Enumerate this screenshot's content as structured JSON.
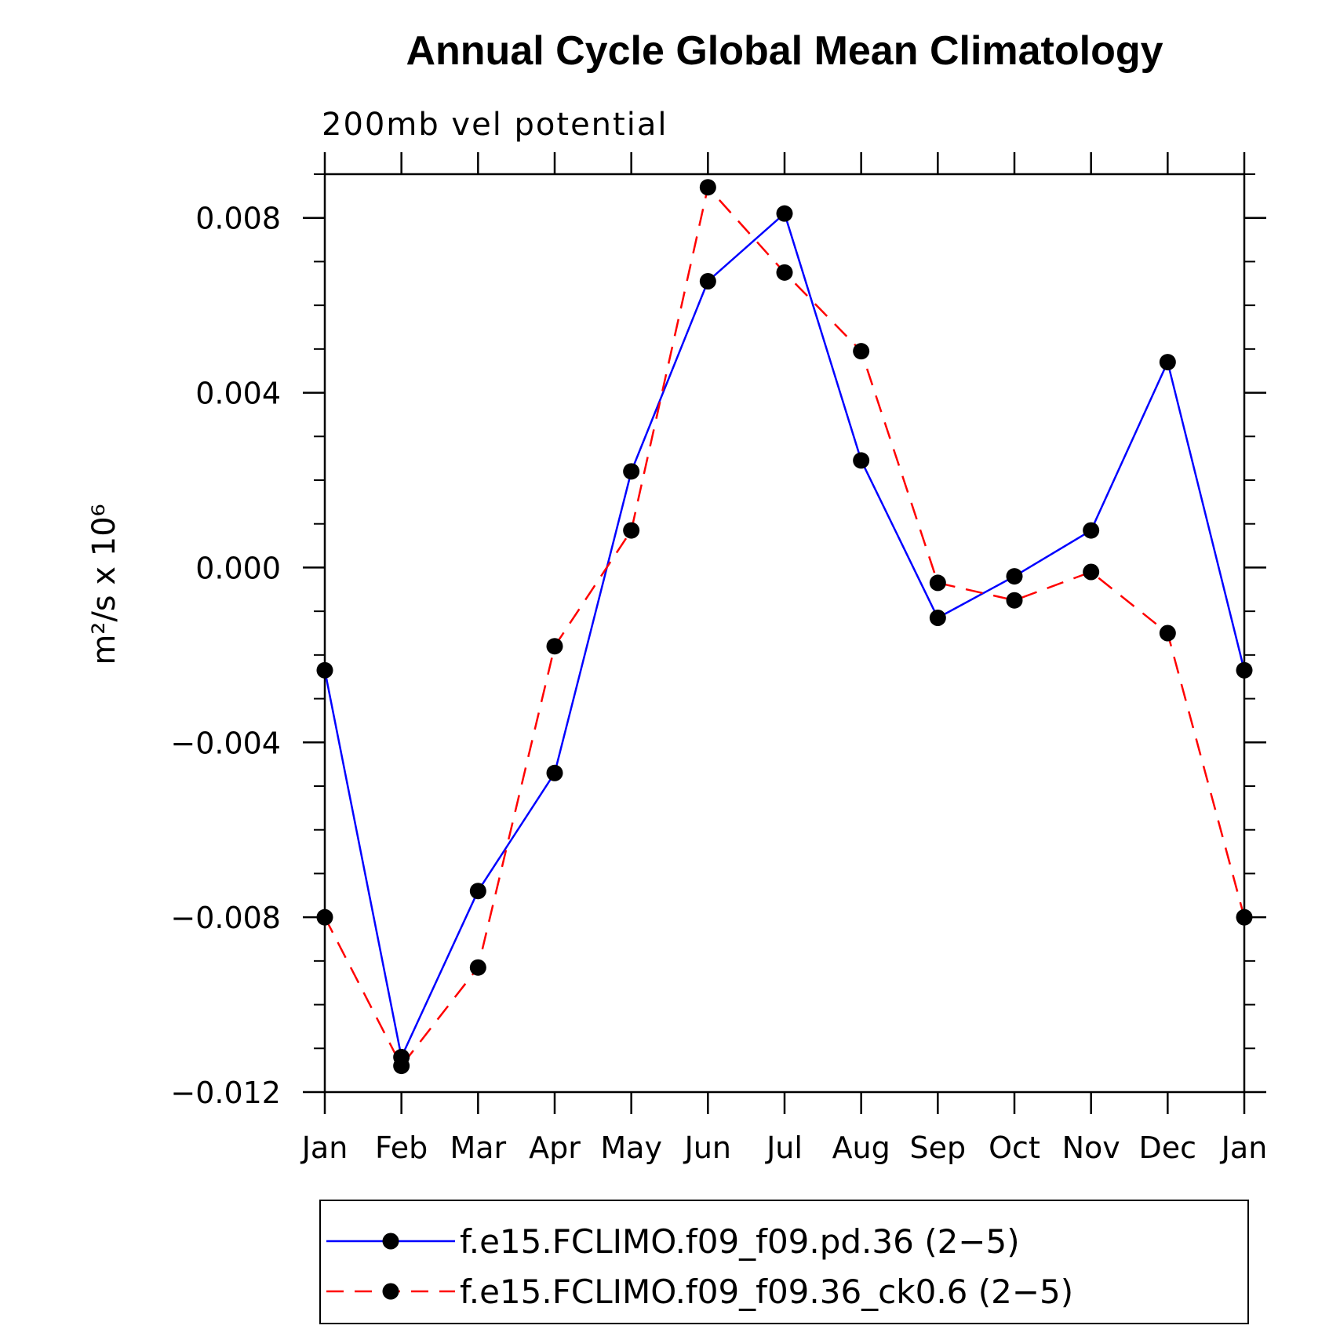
{
  "chart_data": {
    "type": "line",
    "title": "Annual Cycle Global Mean Climatology",
    "subtitle": "200mb vel potential",
    "ylabel": "m²/s x 10⁶",
    "xlabel": "",
    "ylim": [
      -0.012,
      0.009
    ],
    "yticks": [
      -0.012,
      -0.008,
      -0.004,
      0.0,
      0.004,
      0.008
    ],
    "ytick_labels": [
      "−0.012",
      "−0.008",
      "−0.004",
      "0.000",
      "0.004",
      "0.008"
    ],
    "categories": [
      "Jan",
      "Feb",
      "Mar",
      "Apr",
      "May",
      "Jun",
      "Jul",
      "Aug",
      "Sep",
      "Oct",
      "Nov",
      "Dec",
      "Jan"
    ],
    "series": [
      {
        "name": "f.e15.FCLIMO.f09_f09.pd.36 (2−5)",
        "color": "#0000ff",
        "dash": "solid",
        "values": [
          -0.00235,
          -0.0112,
          -0.0074,
          -0.0047,
          0.0022,
          0.00655,
          0.0081,
          0.00245,
          -0.00115,
          -0.0002,
          0.00085,
          0.0047,
          -0.00235
        ]
      },
      {
        "name": "f.e15.FCLIMO.f09_f09.36_ck0.6 (2−5)",
        "color": "#ff0000",
        "dash": "dashed",
        "values": [
          -0.008,
          -0.0114,
          -0.00915,
          -0.0018,
          0.00085,
          0.0087,
          0.00675,
          0.00495,
          -0.00035,
          -0.00075,
          -0.0001,
          -0.0015,
          -0.008
        ]
      }
    ],
    "legend_position": "bottom"
  }
}
